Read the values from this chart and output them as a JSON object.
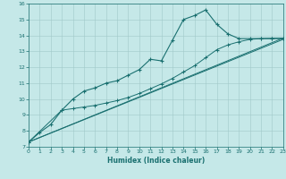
{
  "xlabel": "Humidex (Indice chaleur)",
  "ylabel": "",
  "bg_color": "#c5e8e8",
  "grid_color": "#a0c8c8",
  "line_color": "#1a7070",
  "x_min": 0,
  "x_max": 23,
  "y_min": 7,
  "y_max": 16,
  "line1_x": [
    0,
    1,
    2,
    3,
    4,
    5,
    6,
    7,
    8,
    9,
    10,
    11,
    12,
    13,
    14,
    15,
    16,
    17,
    18,
    19,
    20,
    21,
    22,
    23
  ],
  "line1_y": [
    7.3,
    7.9,
    8.4,
    9.3,
    10.0,
    10.5,
    10.7,
    11.0,
    11.15,
    11.5,
    11.85,
    12.5,
    12.4,
    13.7,
    15.0,
    15.25,
    15.6,
    14.7,
    14.1,
    13.8,
    13.8,
    13.8,
    13.8,
    13.8
  ],
  "line2_x": [
    0,
    3,
    4,
    5,
    6,
    7,
    8,
    9,
    10,
    11,
    12,
    13,
    14,
    15,
    16,
    17,
    18,
    19,
    20,
    21,
    22,
    23
  ],
  "line2_y": [
    7.3,
    9.3,
    9.4,
    9.5,
    9.6,
    9.75,
    9.9,
    10.1,
    10.35,
    10.65,
    10.95,
    11.3,
    11.7,
    12.1,
    12.6,
    13.1,
    13.4,
    13.6,
    13.75,
    13.8,
    13.82,
    13.83
  ],
  "line3_x": [
    0,
    23
  ],
  "line3_y": [
    7.3,
    13.83
  ],
  "line4_x": [
    0,
    23
  ],
  "line4_y": [
    7.3,
    13.75
  ]
}
